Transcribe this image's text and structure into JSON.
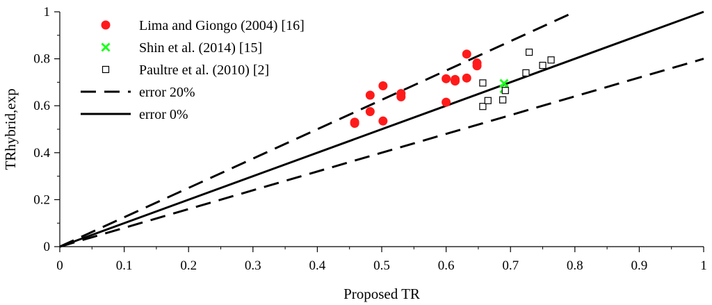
{
  "chart_data": {
    "type": "scatter",
    "title": "",
    "xlabel": "Proposed TR",
    "ylabel": "TRhybrid,exp",
    "xlim": [
      0,
      1
    ],
    "ylim": [
      0,
      1
    ],
    "grid": false,
    "legend_position": "top-left",
    "x_ticks": [
      "0",
      "0.1",
      "0.2",
      "0.3",
      "0.4",
      "0.5",
      "0.6",
      "0.7",
      "0.8",
      "0.9",
      "1"
    ],
    "y_ticks": [
      "0",
      "0.2",
      "0.4",
      "0.6",
      "0.8",
      "1"
    ],
    "series": [
      {
        "name": "Lima and Giongo (2004) [16]",
        "marker": "filled-circle",
        "color": "#ff1a1a",
        "points": [
          [
            0.458,
            0.525
          ],
          [
            0.458,
            0.53
          ],
          [
            0.482,
            0.575
          ],
          [
            0.482,
            0.645
          ],
          [
            0.502,
            0.535
          ],
          [
            0.502,
            0.685
          ],
          [
            0.53,
            0.638
          ],
          [
            0.53,
            0.652
          ],
          [
            0.6,
            0.615
          ],
          [
            0.6,
            0.715
          ],
          [
            0.614,
            0.705
          ],
          [
            0.614,
            0.712
          ],
          [
            0.632,
            0.718
          ],
          [
            0.632,
            0.82
          ],
          [
            0.648,
            0.77
          ],
          [
            0.648,
            0.782
          ]
        ]
      },
      {
        "name": "Shin et al. (2014) [15]",
        "marker": "x",
        "color": "#1aff1a",
        "points": [
          [
            0.69,
            0.695
          ],
          [
            0.69,
            0.672
          ]
        ]
      },
      {
        "name": "Paultre et al. (2010) [2]",
        "marker": "open-square",
        "color": "#000000",
        "points": [
          [
            0.657,
            0.697
          ],
          [
            0.657,
            0.597
          ],
          [
            0.665,
            0.622
          ],
          [
            0.688,
            0.625
          ],
          [
            0.692,
            0.665
          ],
          [
            0.724,
            0.74
          ],
          [
            0.729,
            0.828
          ],
          [
            0.75,
            0.772
          ],
          [
            0.763,
            0.795
          ]
        ]
      }
    ],
    "reference_lines": [
      {
        "name": "error 20%",
        "style": "dashed",
        "color": "#000000",
        "slopes": [
          1.25,
          0.8
        ]
      },
      {
        "name": "error 0%",
        "style": "solid",
        "color": "#000000",
        "slopes": [
          1.0
        ]
      }
    ]
  }
}
